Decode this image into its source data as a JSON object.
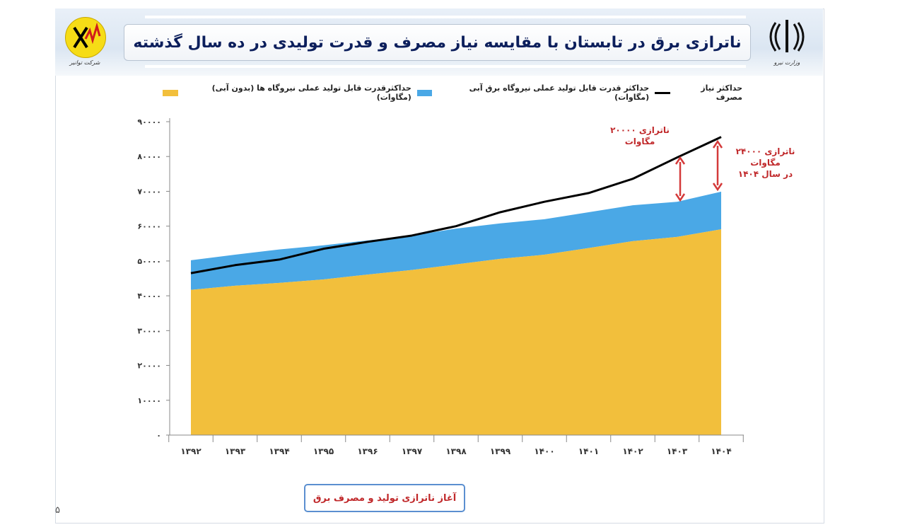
{
  "header": {
    "title": "ناترازی برق در تابستان با مقایسه نیاز مصرف و قدرت تولیدی در ده سال گذشته",
    "left_logo_caption": "شرکت توانیر",
    "right_logo_caption": "وزارت نیرو"
  },
  "chart_data": {
    "type": "area",
    "title": "ناترازی برق در تابستان با مقایسه نیاز مصرف و قدرت تولیدی در ده سال گذشته",
    "categories": [
      "۱۳۹۲",
      "۱۳۹۳",
      "۱۳۹۴",
      "۱۳۹۵",
      "۱۳۹۶",
      "۱۳۹۷",
      "۱۳۹۸",
      "۱۳۹۹",
      "۱۴۰۰",
      "۱۴۰۱",
      "۱۴۰۲",
      "۱۴۰۳",
      "۱۴۰۴"
    ],
    "yticks": [
      "۰",
      "۱۰۰۰۰",
      "۲۰۰۰۰",
      "۳۰۰۰۰",
      "۴۰۰۰۰",
      "۵۰۰۰۰",
      "۶۰۰۰۰",
      "۷۰۰۰۰",
      "۸۰۰۰۰",
      "۹۰۰۰۰"
    ],
    "ylim": [
      0,
      90000
    ],
    "legend_position": "top",
    "series": [
      {
        "name": "حداکثرقدرت قابل تولید عملی نیروگاه ها (بدون آبی)(مگاوات)",
        "kind": "area-base",
        "color": "#f2bf3c",
        "values": [
          41700,
          42900,
          43700,
          44700,
          46100,
          47400,
          49000,
          50600,
          51800,
          53700,
          55700,
          56900,
          59100
        ]
      },
      {
        "name": "حداکثر قدرت قابل تولید عملی نیروگاه برق آبی (مگاوات)",
        "kind": "area-stacked-top",
        "color": "#4aa8e6",
        "values": [
          50200,
          51800,
          53300,
          54500,
          55900,
          57300,
          59300,
          60800,
          62000,
          64000,
          66000,
          67000,
          69900
        ]
      },
      {
        "name": "حداکثر نیاز مصرف",
        "kind": "line",
        "color": "#000000",
        "values": [
          46500,
          48800,
          50400,
          53500,
          55500,
          57300,
          60000,
          64000,
          67000,
          69500,
          73600,
          79700,
          85600
        ]
      }
    ],
    "annotations": [
      {
        "text": "ناترازی ۲۰۰۰۰ مگاوات",
        "category": "۱۴۰۳"
      },
      {
        "text": "ناترازی ۲۴۰۰۰ مگاوات در سال ۱۴۰۴",
        "category": "۱۴۰۴"
      },
      {
        "text": "آغاز ناترازی تولید و مصرف برق",
        "category": "۱۳۹۷"
      }
    ]
  },
  "labels": {
    "ann1_l1": "ناترازی ۲۰۰۰۰",
    "ann1_l2": "مگاوات",
    "ann2_l1": "ناترازی ۲۴۰۰۰",
    "ann2_l2": "مگاوات",
    "ann2_l3": "در سال ۱۴۰۴",
    "start": "آغاز ناترازی تولید و مصرف برق",
    "page_number": "۵"
  }
}
